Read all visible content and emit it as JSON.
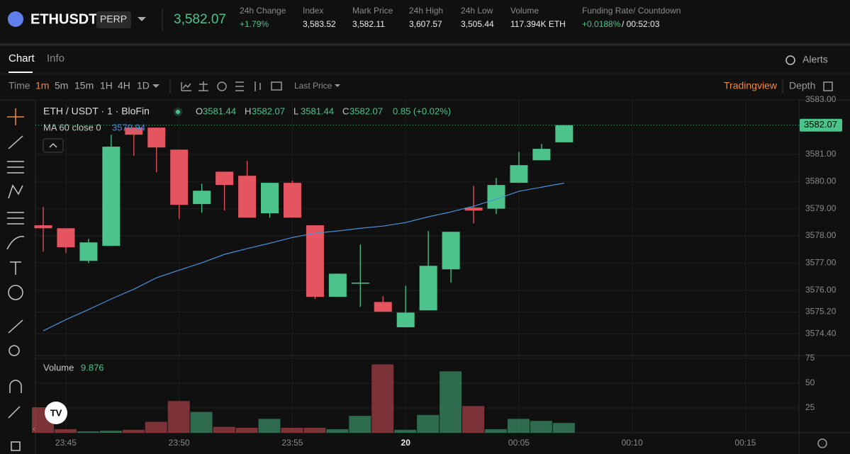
{
  "header": {
    "symbol": "ETHUSDT",
    "badge": "PERP",
    "price": "3,582.07",
    "stats": [
      {
        "label": "24h Change",
        "value": "+1.79%"
      },
      {
        "label": "Index",
        "value": "3,583.52"
      },
      {
        "label": "Mark Price",
        "value": "3,582.11"
      },
      {
        "label": "24h High",
        "value": "3,607.57"
      },
      {
        "label": "24h Low",
        "value": "3,505.44"
      },
      {
        "label": "Volume",
        "value": "117.394K ETH"
      },
      {
        "label": "Funding Rate/ Countdown",
        "value": "+0.0188%",
        "extra": "/ 00:52:03"
      }
    ]
  },
  "tabs": [
    "Chart",
    "Info"
  ],
  "alerts": "Alerts",
  "toolbar": {
    "time": "Time",
    "intervals": [
      "1m",
      "5m",
      "15m",
      "1H",
      "4H",
      "1D"
    ],
    "price_source": "Last Price",
    "view": "Tradingview",
    "depth": "Depth"
  },
  "chart": {
    "type": "candlestick",
    "pair": "ETH / USDT · 1 · BloFin",
    "ohlc_labels": [
      "O",
      "H",
      "L",
      "C"
    ],
    "change": "0.85 (+0.02%)",
    "ma_label": "MA 60 close 0",
    "volume_label": "Volume",
    "candles": [
      {
        "open": 3578.39,
        "high": 3579.06,
        "low": 3577.42,
        "close": 3578.28
      },
      {
        "open": 3578.28,
        "high": 3578.28,
        "low": 3577.37,
        "close": 3577.58
      },
      {
        "open": 3577.08,
        "high": 3577.89,
        "low": 3577.0,
        "close": 3577.76
      },
      {
        "open": 3577.63,
        "high": 3581.72,
        "low": 3577.63,
        "close": 3581.28
      },
      {
        "open": 3581.98,
        "high": 3582.0,
        "low": 3580.94,
        "close": 3581.72
      },
      {
        "open": 3581.98,
        "high": 3581.98,
        "low": 3580.34,
        "close": 3581.25
      },
      {
        "open": 3581.17,
        "high": 3581.17,
        "low": 3578.62,
        "close": 3579.14
      },
      {
        "open": 3579.17,
        "high": 3579.92,
        "low": 3578.85,
        "close": 3579.66
      },
      {
        "open": 3580.36,
        "high": 3580.36,
        "low": 3578.93,
        "close": 3579.87
      },
      {
        "open": 3580.21,
        "high": 3580.76,
        "low": 3578.67,
        "close": 3578.67
      },
      {
        "open": 3578.83,
        "high": 3579.95,
        "low": 3578.67,
        "close": 3579.95
      },
      {
        "open": 3579.95,
        "high": 3580.03,
        "low": 3578.67,
        "close": 3578.67
      },
      {
        "open": 3578.39,
        "high": 3578.39,
        "low": 3575.68,
        "close": 3575.76
      },
      {
        "open": 3575.76,
        "high": 3576.61,
        "low": 3575.76,
        "close": 3576.61
      },
      {
        "open": 3576.25,
        "high": 3577.68,
        "low": 3575.39,
        "close": 3576.28
      },
      {
        "open": 3575.57,
        "high": 3575.78,
        "low": 3575.21,
        "close": 3575.21
      },
      {
        "open": 3574.64,
        "high": 3576.17,
        "low": 3574.64,
        "close": 3575.18
      },
      {
        "open": 3575.26,
        "high": 3578.18,
        "low": 3575.26,
        "close": 3576.9
      },
      {
        "open": 3576.77,
        "high": 3578.15,
        "low": 3576.28,
        "close": 3578.15
      },
      {
        "open": 3579.04,
        "high": 3579.84,
        "low": 3578.46,
        "close": 3578.93
      },
      {
        "open": 3579.0,
        "high": 3580.13,
        "low": 3578.8,
        "close": 3579.87
      },
      {
        "open": 3579.95,
        "high": 3581.09,
        "low": 3579.95,
        "close": 3580.6
      },
      {
        "open": 3580.78,
        "high": 3581.38,
        "low": 3580.78,
        "close": 3581.2
      },
      {
        "open": 3581.44,
        "high": 3582.07,
        "low": 3581.44,
        "close": 3582.07
      }
    ],
    "ma": [
      3574.51,
      3574.92,
      3575.29,
      3575.68,
      3576.04,
      3576.46,
      3576.74,
      3577.01,
      3577.32,
      3577.53,
      3577.73,
      3577.94,
      3578.1,
      3578.18,
      3578.28,
      3578.36,
      3578.49,
      3578.7,
      3578.88,
      3579.09,
      3579.35,
      3579.64,
      3579.79,
      3579.94
    ],
    "volumes": [
      25.7,
      3.6,
      1.4,
      2,
      3,
      11,
      32,
      21,
      6,
      5,
      14,
      5,
      5,
      3.6,
      17,
      69,
      3,
      18,
      62,
      27,
      3.6,
      14,
      12,
      9.876
    ],
    "ylim": [
      3573.6,
      3583.0
    ],
    "yticks": [
      {
        "value": 3583,
        "label": "3583.00"
      },
      {
        "value": 3581,
        "label": "3581.00"
      },
      {
        "value": 3580,
        "label": "3580.00"
      },
      {
        "value": 3579,
        "label": "3579.00"
      },
      {
        "value": 3578,
        "label": "3578.00"
      },
      {
        "value": 3577,
        "label": "3577.00"
      },
      {
        "value": 3576,
        "label": "3576.00"
      },
      {
        "value": 3575.2,
        "label": "3575.20"
      },
      {
        "value": 3574.4,
        "label": "3574.40"
      }
    ],
    "vlim": [
      0,
      77.9
    ],
    "vticks": [
      75,
      50,
      25
    ],
    "xticks": [
      {
        "index": 1,
        "label": "23:45"
      },
      {
        "index": 6,
        "label": "23:50"
      },
      {
        "index": 11,
        "label": "23:55"
      },
      {
        "index": 16,
        "label": "20"
      },
      {
        "index": 21,
        "label": "00:05"
      },
      {
        "index": 26,
        "label": "00:10"
      },
      {
        "index": 31,
        "label": "00:15"
      }
    ],
    "up_color": "#4cc38a",
    "down_color": "#e5555f",
    "ma_color": "#4a90d9"
  }
}
